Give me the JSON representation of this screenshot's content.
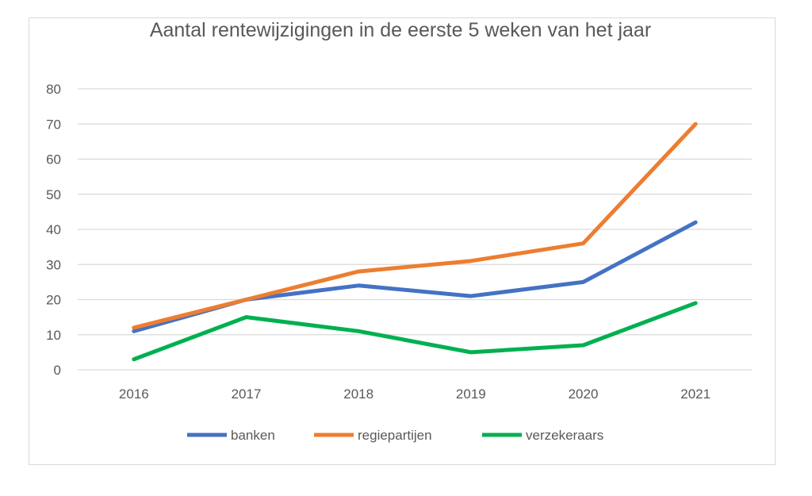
{
  "chart_data": {
    "type": "line",
    "title": "Aantal rentewijzigingen in de eerste 5 weken van het jaar",
    "categories": [
      "2016",
      "2017",
      "2018",
      "2019",
      "2020",
      "2021"
    ],
    "ylim": [
      0,
      80
    ],
    "yticks": [
      "0",
      "10",
      "20",
      "30",
      "40",
      "50",
      "60",
      "70",
      "80"
    ],
    "grid": true,
    "legend_position": "bottom",
    "series": [
      {
        "name": "banken",
        "color": "#4472C4",
        "values": [
          11,
          20,
          24,
          21,
          25,
          42
        ]
      },
      {
        "name": "regiepartijen",
        "color": "#ED7D31",
        "values": [
          12,
          20,
          28,
          31,
          36,
          70
        ]
      },
      {
        "name": "verzekeraars",
        "color": "#00B050",
        "values": [
          3,
          15,
          11,
          5,
          7,
          19
        ]
      }
    ]
  }
}
